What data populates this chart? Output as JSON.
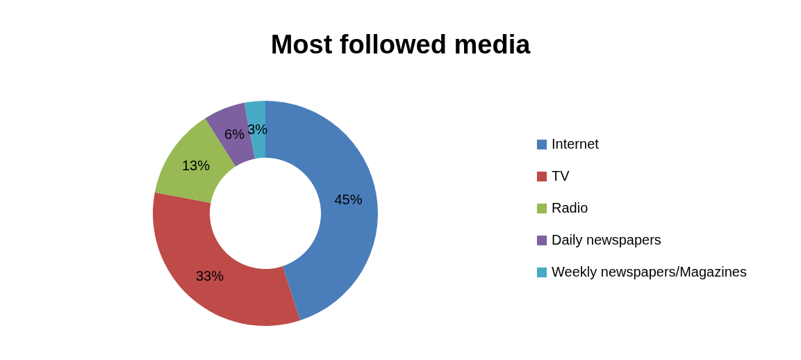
{
  "chart_data": {
    "type": "donut",
    "title": "Most followed media",
    "categories": [
      "Internet",
      "TV",
      "Radio",
      "Daily newspapers",
      "Weekly newspapers/Magazines"
    ],
    "values": [
      45,
      33,
      13,
      6,
      3
    ],
    "colors": [
      "#4a7ebb",
      "#be4b48",
      "#98b954",
      "#7d60a0",
      "#46aac5"
    ],
    "value_labels": [
      "45%",
      "33%",
      "13%",
      "6%",
      "3%"
    ],
    "legend": "right"
  }
}
